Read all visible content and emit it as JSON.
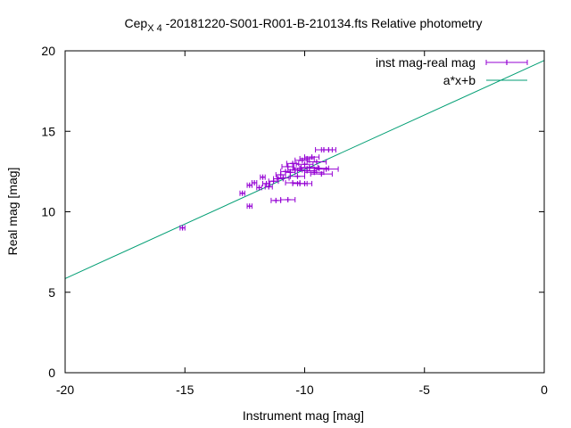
{
  "chart_data": {
    "type": "scatter",
    "title": {
      "prefix": "Cep",
      "subscript": "X 4",
      "suffix": " -20181220-S001-R001-B-210134.fts Relative photometry"
    },
    "xlabel": "Instrument mag [mag]",
    "ylabel": "Real mag [mag]",
    "xlim": [
      -20,
      0
    ],
    "ylim": [
      0,
      20
    ],
    "xticks": [
      -20,
      -15,
      -10,
      -5,
      0
    ],
    "yticks": [
      0,
      5,
      10,
      15,
      20
    ],
    "grid": false,
    "legend_position": "top-right",
    "colors": {
      "points": "#9400d3",
      "fit": "#009e73",
      "frame": "#000000"
    },
    "series": [
      {
        "name": "inst mag-real mag",
        "kind": "errorbar",
        "points": [
          {
            "x": -15.1,
            "y": 9.0,
            "xerr": 0.1
          },
          {
            "x": -12.6,
            "y": 11.15,
            "xerr": 0.1
          },
          {
            "x": -12.3,
            "y": 10.35,
            "xerr": 0.1
          },
          {
            "x": -12.3,
            "y": 11.65,
            "xerr": 0.1
          },
          {
            "x": -12.1,
            "y": 11.8,
            "xerr": 0.1
          },
          {
            "x": -11.9,
            "y": 11.5,
            "xerr": 0.1
          },
          {
            "x": -11.75,
            "y": 12.15,
            "xerr": 0.1
          },
          {
            "x": -11.6,
            "y": 11.75,
            "xerr": 0.15
          },
          {
            "x": -11.5,
            "y": 11.55,
            "xerr": 0.15
          },
          {
            "x": -11.3,
            "y": 11.9,
            "xerr": 0.2
          },
          {
            "x": -11.2,
            "y": 10.7,
            "xerr": 0.2
          },
          {
            "x": -11.1,
            "y": 12.05,
            "xerr": 0.2
          },
          {
            "x": -11.0,
            "y": 12.3,
            "xerr": 0.2
          },
          {
            "x": -10.9,
            "y": 12.1,
            "xerr": 0.25
          },
          {
            "x": -10.8,
            "y": 12.5,
            "xerr": 0.2
          },
          {
            "x": -10.7,
            "y": 10.75,
            "xerr": 0.3
          },
          {
            "x": -10.7,
            "y": 12.8,
            "xerr": 0.25
          },
          {
            "x": -10.6,
            "y": 12.45,
            "xerr": 0.2
          },
          {
            "x": -10.5,
            "y": 11.8,
            "xerr": 0.3
          },
          {
            "x": -10.5,
            "y": 13.0,
            "xerr": 0.25
          },
          {
            "x": -10.4,
            "y": 12.6,
            "xerr": 0.3
          },
          {
            "x": -10.3,
            "y": 12.2,
            "xerr": 0.3
          },
          {
            "x": -10.2,
            "y": 11.75,
            "xerr": 0.3
          },
          {
            "x": -10.2,
            "y": 12.7,
            "xerr": 0.3
          },
          {
            "x": -10.1,
            "y": 13.2,
            "xerr": 0.3
          },
          {
            "x": -10.0,
            "y": 12.95,
            "xerr": 0.35
          },
          {
            "x": -10.0,
            "y": 11.75,
            "xerr": 0.3
          },
          {
            "x": -9.9,
            "y": 12.55,
            "xerr": 0.4
          },
          {
            "x": -9.9,
            "y": 13.3,
            "xerr": 0.3
          },
          {
            "x": -9.8,
            "y": 12.75,
            "xerr": 0.35
          },
          {
            "x": -9.7,
            "y": 13.4,
            "xerr": 0.3
          },
          {
            "x": -9.6,
            "y": 12.45,
            "xerr": 0.4
          },
          {
            "x": -9.5,
            "y": 13.1,
            "xerr": 0.4
          },
          {
            "x": -9.4,
            "y": 12.7,
            "xerr": 0.4
          },
          {
            "x": -9.3,
            "y": 12.35,
            "xerr": 0.45
          },
          {
            "x": -9.2,
            "y": 13.85,
            "xerr": 0.35
          },
          {
            "x": -9.1,
            "y": 12.65,
            "xerr": 0.5
          },
          {
            "x": -9.0,
            "y": 13.85,
            "xerr": 0.3
          }
        ]
      },
      {
        "name": "a*x+b",
        "kind": "line",
        "points": [
          {
            "x": -20,
            "y": 5.85
          },
          {
            "x": 0,
            "y": 19.4
          }
        ]
      }
    ]
  }
}
